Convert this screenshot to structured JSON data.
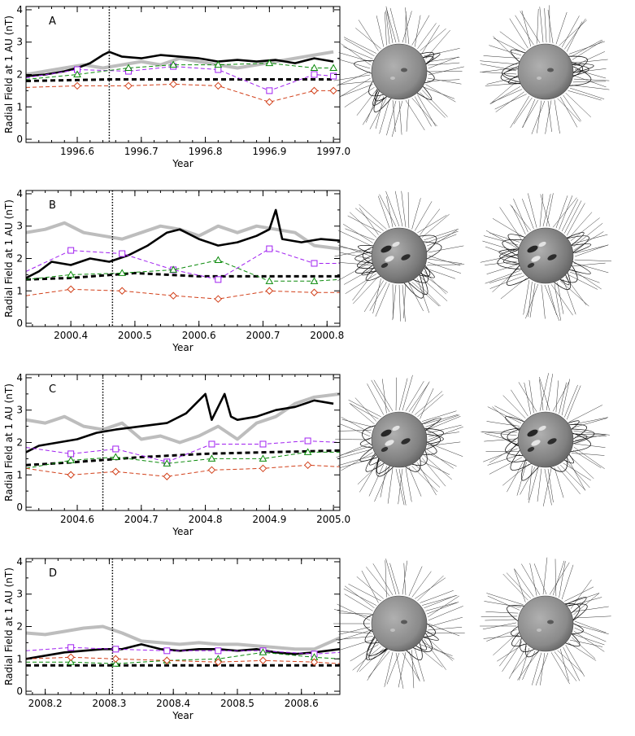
{
  "figure": {
    "y_label": "Radial Field at 1 AU (nT)",
    "x_label": "Year"
  },
  "chart_data": [
    {
      "type": "line",
      "panel": "A",
      "xlabel": "Year",
      "ylabel": "Radial Field at 1 AU (nT)",
      "xlim": [
        1996.52,
        1997.01
      ],
      "ylim": [
        -0.1,
        4.1
      ],
      "xticks": [
        1996.6,
        1996.7,
        1996.8,
        1996.9,
        1997.0
      ],
      "xtick_labels": [
        "1996.6",
        "1996.7",
        "1996.8",
        "1996.9",
        "1997.0"
      ],
      "yticks": [
        0,
        1,
        2,
        3,
        4
      ],
      "ytick_labels": [
        "0",
        "1",
        "2",
        "3",
        "4"
      ],
      "vline": 1996.65,
      "series": [
        {
          "name": "gray",
          "style": "gray-thick",
          "x": [
            1996.52,
            1996.55,
            1996.58,
            1996.61,
            1996.64,
            1996.67,
            1996.7,
            1996.73,
            1996.76,
            1996.79,
            1996.82,
            1996.85,
            1996.88,
            1996.91,
            1996.94,
            1996.97,
            1997.0
          ],
          "y": [
            2.0,
            2.1,
            2.2,
            2.3,
            2.2,
            2.3,
            2.4,
            2.3,
            2.5,
            2.4,
            2.3,
            2.2,
            2.3,
            2.4,
            2.5,
            2.6,
            2.7
          ]
        },
        {
          "name": "black",
          "style": "black-thick",
          "x": [
            1996.52,
            1996.55,
            1996.58,
            1996.6,
            1996.62,
            1996.64,
            1996.65,
            1996.67,
            1996.7,
            1996.73,
            1996.76,
            1996.79,
            1996.82,
            1996.85,
            1996.88,
            1996.91,
            1996.94,
            1996.97,
            1997.0
          ],
          "y": [
            1.95,
            2.0,
            2.1,
            2.2,
            2.35,
            2.6,
            2.7,
            2.55,
            2.5,
            2.6,
            2.55,
            2.5,
            2.4,
            2.45,
            2.4,
            2.45,
            2.35,
            2.5,
            2.4
          ]
        },
        {
          "name": "black dashed",
          "style": "black-dashed",
          "x": [
            1996.52,
            1996.65,
            1996.8,
            1996.9,
            1997.0
          ],
          "y": [
            1.8,
            1.85,
            1.85,
            1.85,
            1.85
          ]
        },
        {
          "name": "purple squares",
          "style": "purple",
          "x": [
            1996.52,
            1996.6,
            1996.68,
            1996.75,
            1996.82,
            1996.9,
            1996.97,
            1997.0
          ],
          "y": [
            1.9,
            2.15,
            2.1,
            2.25,
            2.15,
            1.5,
            2.0,
            1.95
          ]
        },
        {
          "name": "green triangles",
          "style": "green",
          "x": [
            1996.52,
            1996.6,
            1996.68,
            1996.75,
            1996.82,
            1996.9,
            1996.97,
            1997.0
          ],
          "y": [
            1.85,
            2.0,
            2.2,
            2.3,
            2.3,
            2.35,
            2.2,
            2.2
          ]
        },
        {
          "name": "orange diamonds",
          "style": "orange",
          "x": [
            1996.52,
            1996.6,
            1996.68,
            1996.75,
            1996.82,
            1996.9,
            1996.97,
            1997.0
          ],
          "y": [
            1.6,
            1.65,
            1.65,
            1.7,
            1.65,
            1.15,
            1.5,
            1.5
          ]
        }
      ]
    },
    {
      "type": "line",
      "panel": "B",
      "xlabel": "Year",
      "ylabel": "Radial Field at 1 AU (nT)",
      "xlim": [
        2000.33,
        2000.82
      ],
      "ylim": [
        -0.1,
        4.1
      ],
      "xticks": [
        2000.4,
        2000.5,
        2000.6,
        2000.7,
        2000.8
      ],
      "xtick_labels": [
        "2000.4",
        "2000.5",
        "2000.6",
        "2000.7",
        "2000.8"
      ],
      "yticks": [
        0,
        1,
        2,
        3,
        4
      ],
      "ytick_labels": [
        "0",
        "1",
        "2",
        "3",
        "4"
      ],
      "vline": 2000.465,
      "series": [
        {
          "name": "gray",
          "style": "gray-thick",
          "x": [
            2000.33,
            2000.36,
            2000.39,
            2000.42,
            2000.45,
            2000.48,
            2000.51,
            2000.54,
            2000.57,
            2000.6,
            2000.63,
            2000.66,
            2000.69,
            2000.72,
            2000.75,
            2000.78,
            2000.82
          ],
          "y": [
            2.8,
            2.9,
            3.1,
            2.8,
            2.7,
            2.6,
            2.8,
            3.0,
            2.9,
            2.7,
            3.0,
            2.8,
            3.0,
            2.9,
            2.8,
            2.4,
            2.3
          ]
        },
        {
          "name": "black",
          "style": "black-thick",
          "x": [
            2000.33,
            2000.35,
            2000.37,
            2000.4,
            2000.43,
            2000.46,
            2000.49,
            2000.52,
            2000.55,
            2000.57,
            2000.6,
            2000.63,
            2000.66,
            2000.69,
            2000.71,
            2000.72,
            2000.73,
            2000.76,
            2000.79,
            2000.82
          ],
          "y": [
            1.4,
            1.6,
            1.9,
            1.8,
            2.0,
            1.9,
            2.1,
            2.4,
            2.8,
            2.9,
            2.6,
            2.4,
            2.5,
            2.7,
            2.9,
            3.5,
            2.6,
            2.5,
            2.6,
            2.55
          ]
        },
        {
          "name": "black dashed",
          "style": "black-dashed",
          "x": [
            2000.33,
            2000.4,
            2000.5,
            2000.6,
            2000.7,
            2000.82
          ],
          "y": [
            1.35,
            1.4,
            1.55,
            1.45,
            1.45,
            1.45
          ]
        },
        {
          "name": "purple squares",
          "style": "purple",
          "x": [
            2000.33,
            2000.4,
            2000.48,
            2000.56,
            2000.63,
            2000.71,
            2000.78,
            2000.82
          ],
          "y": [
            1.6,
            2.25,
            2.15,
            1.65,
            1.35,
            2.3,
            1.85,
            1.85
          ]
        },
        {
          "name": "green triangles",
          "style": "green",
          "x": [
            2000.33,
            2000.4,
            2000.48,
            2000.56,
            2000.63,
            2000.71,
            2000.78,
            2000.82
          ],
          "y": [
            1.35,
            1.5,
            1.55,
            1.65,
            1.95,
            1.3,
            1.3,
            1.35
          ]
        },
        {
          "name": "orange diamonds",
          "style": "orange",
          "x": [
            2000.33,
            2000.4,
            2000.48,
            2000.56,
            2000.63,
            2000.71,
            2000.78,
            2000.82
          ],
          "y": [
            0.85,
            1.05,
            1.0,
            0.85,
            0.75,
            1.0,
            0.95,
            0.95
          ]
        }
      ]
    },
    {
      "type": "line",
      "panel": "C",
      "xlabel": "Year",
      "ylabel": "Radial Field at 1 AU (nT)",
      "xlim": [
        2004.52,
        2005.01
      ],
      "ylim": [
        -0.1,
        4.1
      ],
      "xticks": [
        2004.6,
        2004.7,
        2004.8,
        2004.9,
        2005.0
      ],
      "xtick_labels": [
        "2004.6",
        "2004.7",
        "2004.8",
        "2004.9",
        "2005.0"
      ],
      "yticks": [
        0,
        1,
        2,
        3,
        4
      ],
      "ytick_labels": [
        "0",
        "1",
        "2",
        "3",
        "4"
      ],
      "vline": 2004.64,
      "series": [
        {
          "name": "gray",
          "style": "gray-thick",
          "x": [
            2004.52,
            2004.55,
            2004.58,
            2004.61,
            2004.64,
            2004.67,
            2004.7,
            2004.73,
            2004.76,
            2004.79,
            2004.82,
            2004.85,
            2004.88,
            2004.91,
            2004.94,
            2004.97,
            2005.01
          ],
          "y": [
            2.7,
            2.6,
            2.8,
            2.5,
            2.4,
            2.6,
            2.1,
            2.2,
            2.0,
            2.2,
            2.5,
            2.1,
            2.6,
            2.8,
            3.2,
            3.4,
            3.5
          ]
        },
        {
          "name": "black",
          "style": "black-thick",
          "x": [
            2004.52,
            2004.54,
            2004.57,
            2004.6,
            2004.63,
            2004.66,
            2004.7,
            2004.74,
            2004.77,
            2004.8,
            2004.81,
            2004.82,
            2004.83,
            2004.84,
            2004.85,
            2004.88,
            2004.91,
            2004.94,
            2004.97,
            2005.0
          ],
          "y": [
            1.7,
            1.9,
            2.0,
            2.1,
            2.3,
            2.4,
            2.5,
            2.6,
            2.9,
            3.5,
            2.7,
            3.1,
            3.5,
            2.8,
            2.7,
            2.8,
            3.0,
            3.1,
            3.3,
            3.2
          ]
        },
        {
          "name": "black dashed",
          "style": "black-dashed",
          "x": [
            2004.52,
            2004.6,
            2004.7,
            2004.8,
            2004.9,
            2005.01
          ],
          "y": [
            1.3,
            1.4,
            1.55,
            1.65,
            1.7,
            1.75
          ]
        },
        {
          "name": "purple squares",
          "style": "purple",
          "x": [
            2004.52,
            2004.59,
            2004.66,
            2004.74,
            2004.81,
            2004.89,
            2004.96,
            2005.01
          ],
          "y": [
            1.85,
            1.65,
            1.8,
            1.4,
            1.95,
            1.95,
            2.05,
            2.0
          ]
        },
        {
          "name": "green triangles",
          "style": "green",
          "x": [
            2004.52,
            2004.59,
            2004.66,
            2004.74,
            2004.81,
            2004.89,
            2004.96,
            2005.01
          ],
          "y": [
            1.2,
            1.45,
            1.55,
            1.35,
            1.5,
            1.5,
            1.7,
            1.7
          ]
        },
        {
          "name": "orange diamonds",
          "style": "orange",
          "x": [
            2004.52,
            2004.59,
            2004.66,
            2004.74,
            2004.81,
            2004.89,
            2004.96,
            2005.01
          ],
          "y": [
            1.2,
            1.0,
            1.1,
            0.95,
            1.15,
            1.2,
            1.3,
            1.25
          ]
        }
      ]
    },
    {
      "type": "line",
      "panel": "D",
      "xlabel": "Year",
      "ylabel": "Radial Field at 1 AU (nT)",
      "xlim": [
        2008.17,
        2008.66
      ],
      "ylim": [
        -0.1,
        4.1
      ],
      "xticks": [
        2008.2,
        2008.3,
        2008.4,
        2008.5,
        2008.6
      ],
      "xtick_labels": [
        "2008.2",
        "2008.3",
        "2008.4",
        "2008.5",
        "2008.6"
      ],
      "yticks": [
        0,
        1,
        2,
        3,
        4
      ],
      "ytick_labels": [
        "0",
        "1",
        "2",
        "3",
        "4"
      ],
      "vline": 2008.305,
      "series": [
        {
          "name": "gray",
          "style": "gray-thick",
          "x": [
            2008.17,
            2008.2,
            2008.23,
            2008.26,
            2008.29,
            2008.32,
            2008.35,
            2008.38,
            2008.41,
            2008.44,
            2008.47,
            2008.5,
            2008.53,
            2008.56,
            2008.59,
            2008.62,
            2008.66
          ],
          "y": [
            1.8,
            1.75,
            1.85,
            1.95,
            2.0,
            1.8,
            1.55,
            1.5,
            1.45,
            1.5,
            1.45,
            1.45,
            1.4,
            1.35,
            1.3,
            1.3,
            1.65
          ]
        },
        {
          "name": "black",
          "style": "black-thick",
          "x": [
            2008.17,
            2008.2,
            2008.23,
            2008.26,
            2008.29,
            2008.32,
            2008.35,
            2008.38,
            2008.41,
            2008.44,
            2008.47,
            2008.5,
            2008.53,
            2008.56,
            2008.59,
            2008.62,
            2008.66
          ],
          "y": [
            1.0,
            1.1,
            1.2,
            1.25,
            1.3,
            1.3,
            1.45,
            1.3,
            1.25,
            1.3,
            1.3,
            1.25,
            1.3,
            1.2,
            1.15,
            1.2,
            1.3
          ]
        },
        {
          "name": "black dashed",
          "style": "black-dashed",
          "x": [
            2008.17,
            2008.3,
            2008.4,
            2008.5,
            2008.66
          ],
          "y": [
            0.8,
            0.8,
            0.8,
            0.8,
            0.8
          ]
        },
        {
          "name": "purple squares",
          "style": "purple",
          "x": [
            2008.17,
            2008.24,
            2008.31,
            2008.39,
            2008.47,
            2008.54,
            2008.62,
            2008.66
          ],
          "y": [
            1.25,
            1.35,
            1.3,
            1.25,
            1.25,
            1.25,
            1.15,
            1.2
          ]
        },
        {
          "name": "green triangles",
          "style": "green",
          "x": [
            2008.17,
            2008.24,
            2008.31,
            2008.39,
            2008.47,
            2008.54,
            2008.62,
            2008.66
          ],
          "y": [
            0.9,
            0.9,
            0.85,
            0.95,
            1.0,
            1.2,
            1.05,
            1.0
          ]
        },
        {
          "name": "orange diamonds",
          "style": "orange",
          "x": [
            2008.17,
            2008.24,
            2008.31,
            2008.39,
            2008.47,
            2008.54,
            2008.62,
            2008.66
          ],
          "y": [
            1.0,
            1.05,
            1.0,
            0.95,
            0.9,
            0.95,
            0.9,
            0.85
          ]
        }
      ]
    }
  ],
  "colors": {
    "gray": "#bdbdbd",
    "black": "#000000",
    "purple": "#a020f0",
    "green": "#0a8a0a",
    "orange": "#d2401a"
  },
  "sun_images": [
    {
      "panel": "A",
      "disk_shade": "#8a8a8a",
      "features": "quiet"
    },
    {
      "panel": "B",
      "disk_shade": "#7a7a7a",
      "features": "active"
    },
    {
      "panel": "C",
      "disk_shade": "#808080",
      "features": "active"
    },
    {
      "panel": "D",
      "disk_shade": "#8a8a8a",
      "features": "quiet"
    }
  ]
}
